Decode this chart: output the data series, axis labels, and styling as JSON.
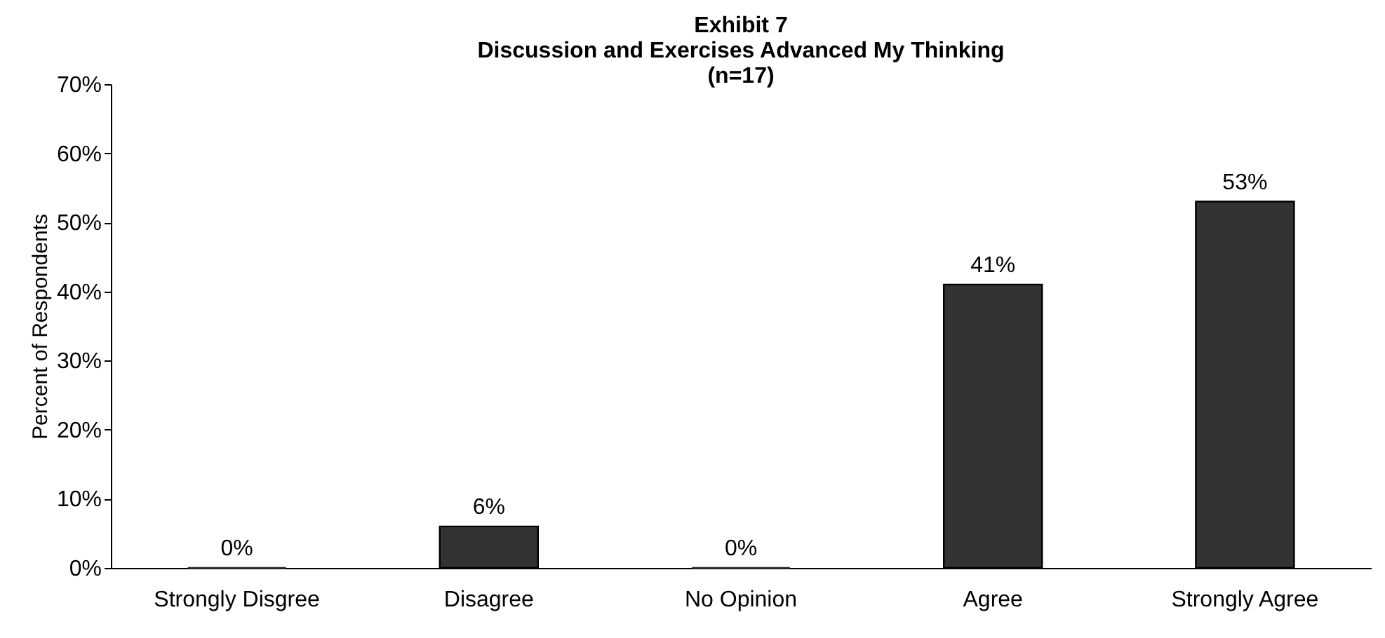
{
  "chart_data": {
    "type": "bar",
    "title": "Exhibit 7\nDiscussion and Exercises Advanced My Thinking\n(n=17)",
    "ylabel": "Percent of Respondents",
    "categories": [
      "Strongly Disgree",
      "Disagree",
      "No Opinion",
      "Agree",
      "Strongly Agree"
    ],
    "values": [
      0,
      6,
      0,
      41,
      53
    ],
    "color": "#333333",
    "value_labels": [
      "0%",
      "6%",
      "0%",
      "41%",
      "53%"
    ],
    "ylim": [
      0,
      70
    ],
    "yticks": [
      {
        "value": 0,
        "label": "0%"
      },
      {
        "value": 10,
        "label": "10%"
      },
      {
        "value": 20,
        "label": "20%"
      },
      {
        "value": 30,
        "label": "30%"
      },
      {
        "value": 40,
        "label": "40%"
      },
      {
        "value": 50,
        "label": "50%"
      },
      {
        "value": 60,
        "label": "60%"
      },
      {
        "value": 70,
        "label": "70%"
      }
    ],
    "grid": false
  }
}
